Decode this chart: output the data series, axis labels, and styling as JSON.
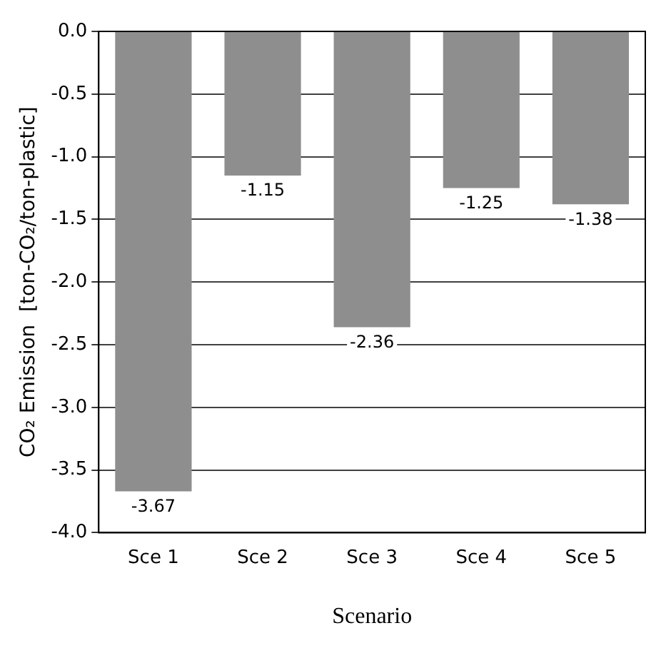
{
  "chart_data": {
    "type": "bar",
    "xlabel": "Scenario",
    "ylabel": "CO₂ Emission  [ton-CO₂/ton-plastic]",
    "categories": [
      "Sce 1",
      "Sce 2",
      "Sce 3",
      "Sce 4",
      "Sce 5"
    ],
    "values": [
      -3.67,
      -1.15,
      -2.36,
      -1.25,
      -1.38
    ],
    "color": "#8e8e8e",
    "ylim": [
      -4,
      0
    ],
    "yticks": [
      {
        "value": 0,
        "label": "0.0"
      },
      {
        "value": -0.5,
        "label": "-0.5"
      },
      {
        "value": -1,
        "label": "-1.0"
      },
      {
        "value": -1.5,
        "label": "-1.5"
      },
      {
        "value": -2,
        "label": "-2.0"
      },
      {
        "value": -2.5,
        "label": "-2.5"
      },
      {
        "value": -3,
        "label": "-3.0"
      },
      {
        "value": -3.5,
        "label": "-3.5"
      },
      {
        "value": -4,
        "label": "-4.0"
      }
    ],
    "grid": "y",
    "data_labels": true,
    "legend": false
  }
}
